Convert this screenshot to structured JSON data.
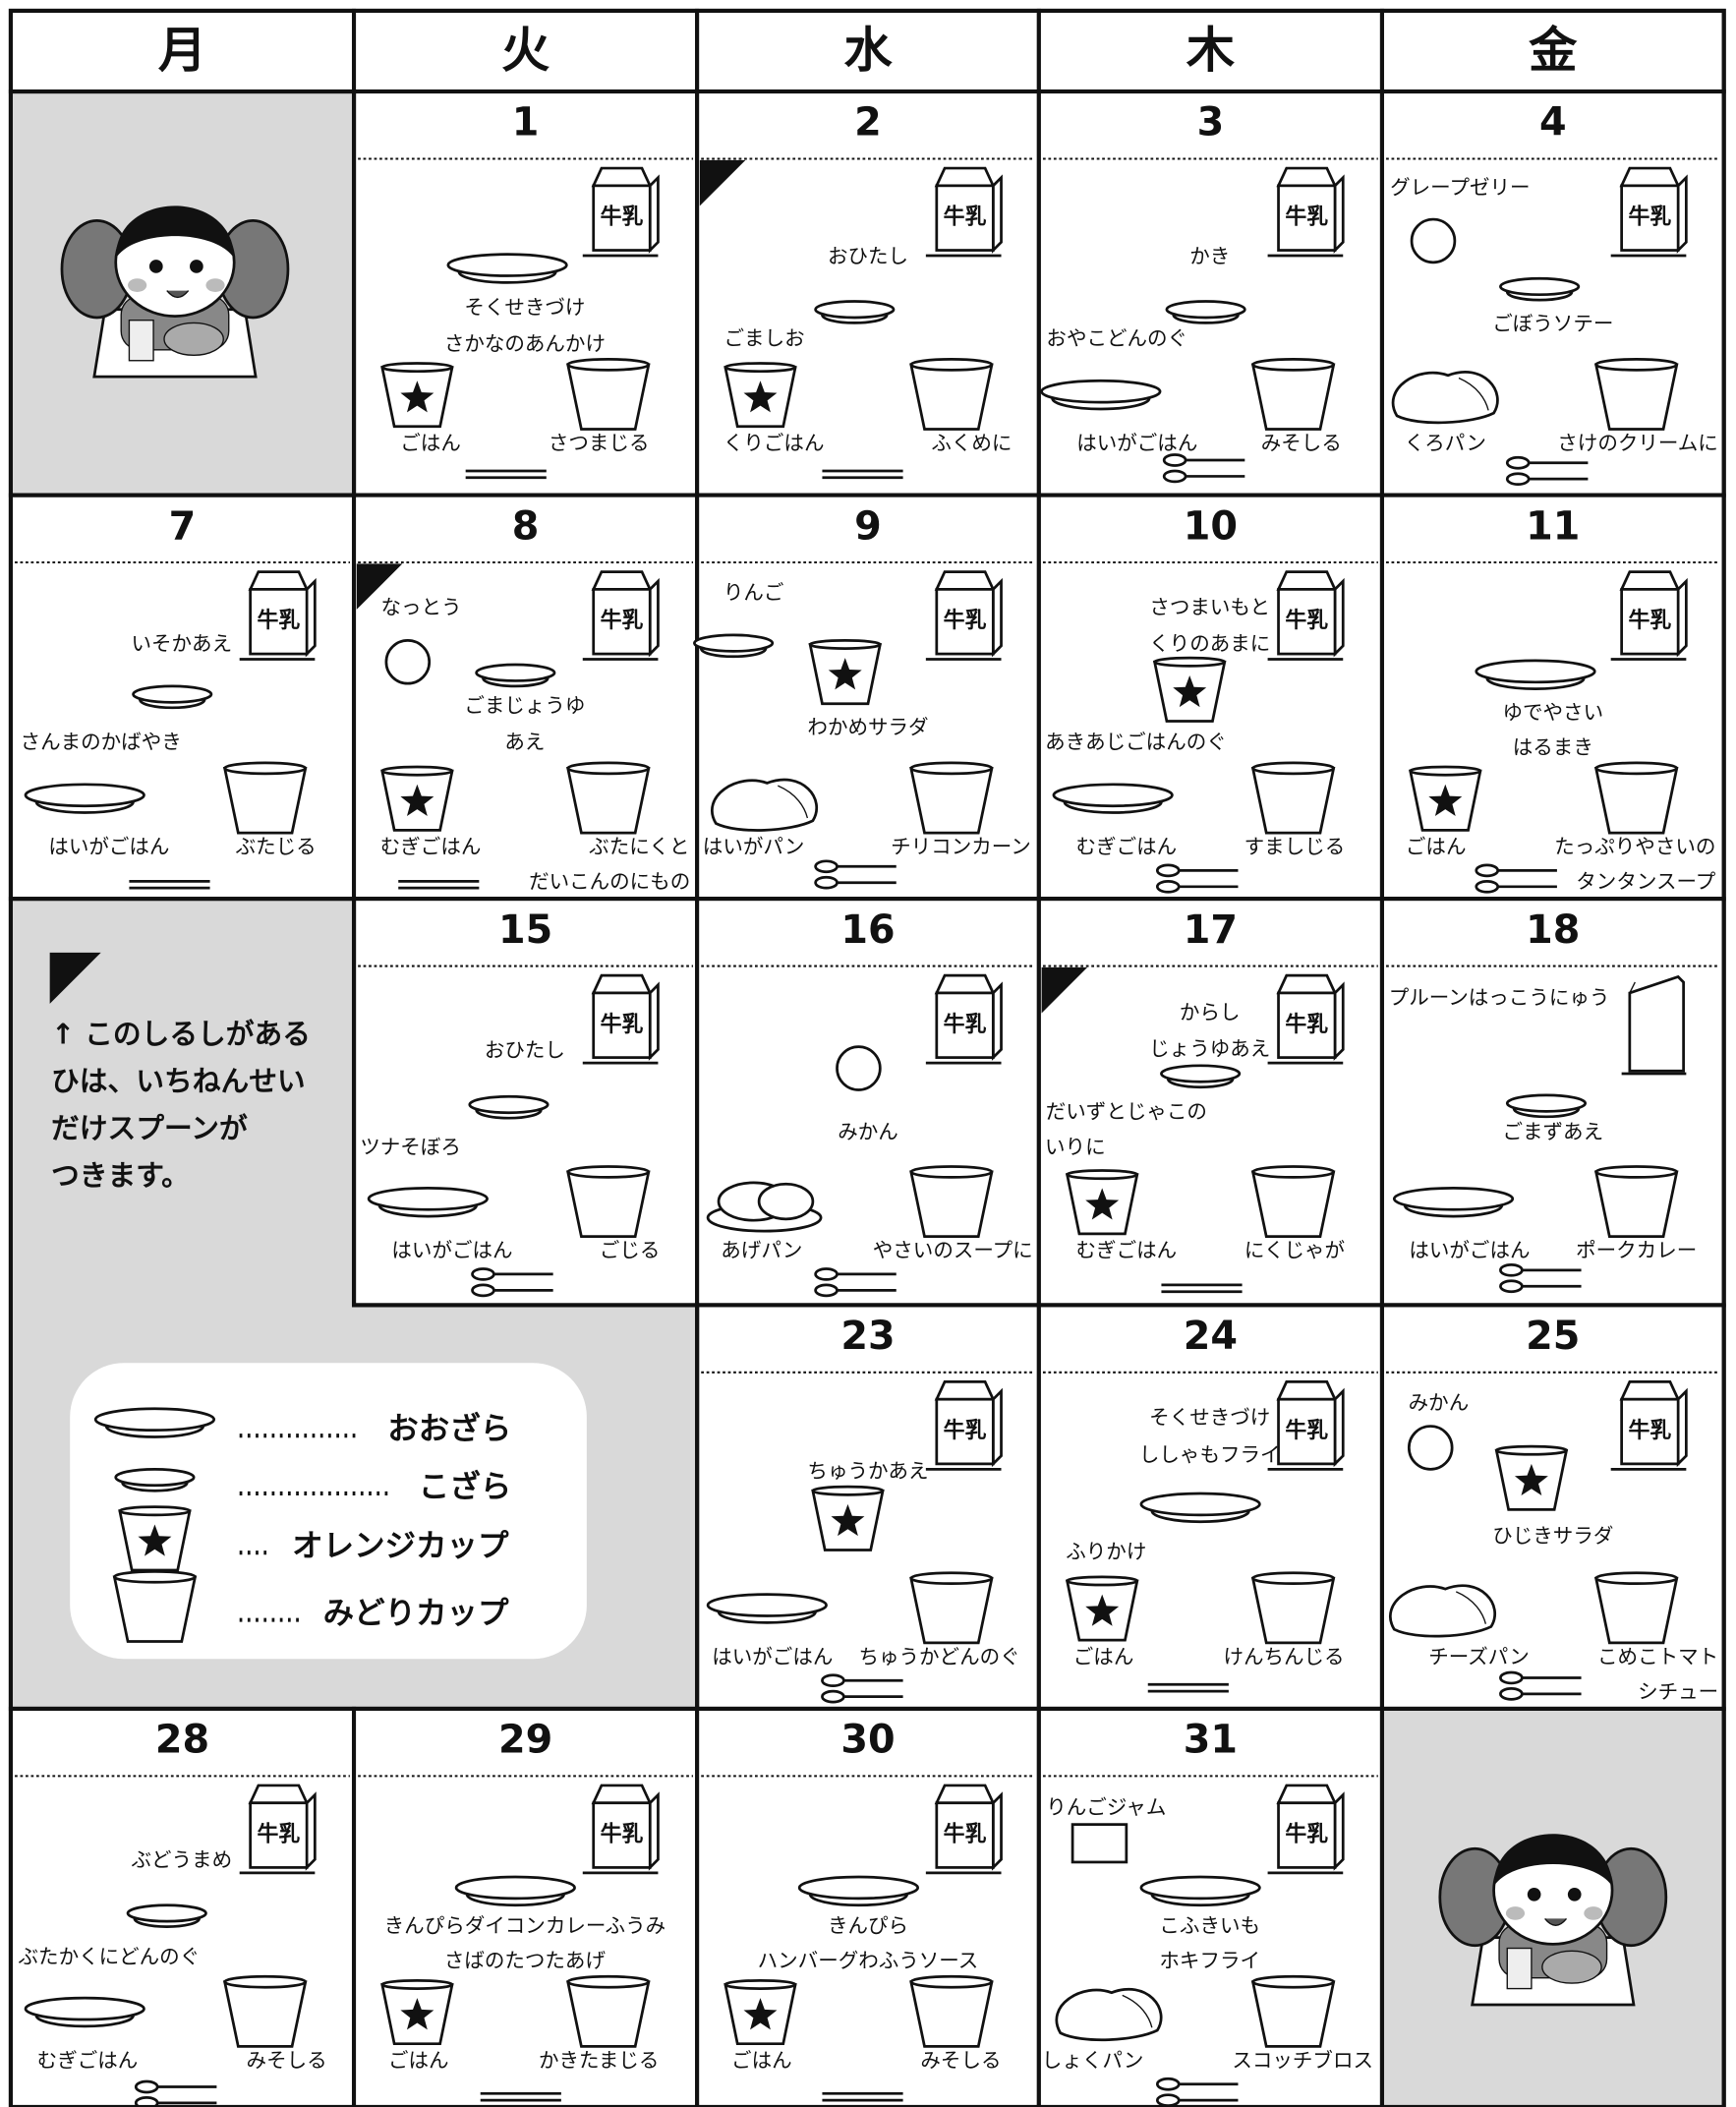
{
  "header": {
    "days": [
      "月",
      "火",
      "水",
      "木",
      "金"
    ]
  },
  "milk_label": "牛乳",
  "note": {
    "lines": [
      "↑ このしるしがある",
      "ひは、いちねんせい",
      "だけスプーンが",
      "つきます。"
    ]
  },
  "legend": {
    "items": [
      "おおざら",
      "こざら",
      "オレンジカップ",
      "みどりカップ"
    ]
  },
  "days": [
    {
      "date": "1",
      "labels": [
        "そくせきづけ",
        "さかなのあんかけ",
        "ごはん",
        "さつまじる"
      ]
    },
    {
      "date": "2",
      "labels": [
        "おひたし",
        "ごましお",
        "くりごはん",
        "ふくめに"
      ]
    },
    {
      "date": "3",
      "labels": [
        "かき",
        "おやこどんのぐ",
        "はいがごはん",
        "みそしる"
      ]
    },
    {
      "date": "4",
      "labels": [
        "グレープゼリー",
        "ごぼうソテー",
        "くろパン",
        "さけのクリームに"
      ]
    },
    {
      "date": "7",
      "labels": [
        "いそかあえ",
        "さんまのかばやき",
        "はいがごはん",
        "ぶたじる"
      ]
    },
    {
      "date": "8",
      "labels": [
        "なっとう",
        "ごまじょうゆ",
        "あえ",
        "むぎごはん",
        "ぶたにくと",
        "だいこんのにもの"
      ]
    },
    {
      "date": "9",
      "labels": [
        "りんご",
        "わかめサラダ",
        "はいがパン",
        "チリコンカーン"
      ]
    },
    {
      "date": "10",
      "labels": [
        "さつまいもと",
        "くりのあまに",
        "あきあじごはんのぐ",
        "むぎごはん",
        "すましじる"
      ]
    },
    {
      "date": "11",
      "labels": [
        "ゆでやさい",
        "はるまき",
        "ごはん",
        "たっぷりやさいの",
        "タンタンスープ"
      ]
    },
    {
      "date": "15",
      "labels": [
        "おひたし",
        "ツナそぼろ",
        "はいがごはん",
        "ごじる"
      ]
    },
    {
      "date": "16",
      "labels": [
        "みかん",
        "あげパン",
        "やさいのスープに"
      ]
    },
    {
      "date": "17",
      "labels": [
        "からし",
        "じょうゆあえ",
        "だいずとじゃこの",
        "いりに",
        "むぎごはん",
        "にくじゃが"
      ]
    },
    {
      "date": "18",
      "labels": [
        "プルーンはっこうにゅう",
        "ごまずあえ",
        "はいがごはん",
        "ポークカレー"
      ]
    },
    {
      "date": "23",
      "labels": [
        "ちゅうかあえ",
        "はいがごはん",
        "ちゅうかどんのぐ"
      ]
    },
    {
      "date": "24",
      "labels": [
        "そくせきづけ",
        "ししゃもフライ",
        "ふりかけ",
        "ごはん",
        "けんちんじる"
      ]
    },
    {
      "date": "25",
      "labels": [
        "みかん",
        "ひじきサラダ",
        "チーズパン",
        "こめこトマト",
        "シチュー"
      ]
    },
    {
      "date": "28",
      "labels": [
        "ぶどうまめ",
        "ぶたかくにどんのぐ",
        "むぎごはん",
        "みそしる"
      ]
    },
    {
      "date": "29",
      "labels": [
        "きんぴらダイコンカレーふうみ",
        "さばのたつたあげ",
        "ごはん",
        "かきたまじる"
      ]
    },
    {
      "date": "30",
      "labels": [
        "きんぴら",
        "ハンバーグわふうソース",
        "ごはん",
        "みそしる"
      ]
    },
    {
      "date": "31",
      "labels": [
        "りんごジャム",
        "こふきいも",
        "ホキフライ",
        "しょくパン",
        "スコッチブロス"
      ]
    }
  ]
}
